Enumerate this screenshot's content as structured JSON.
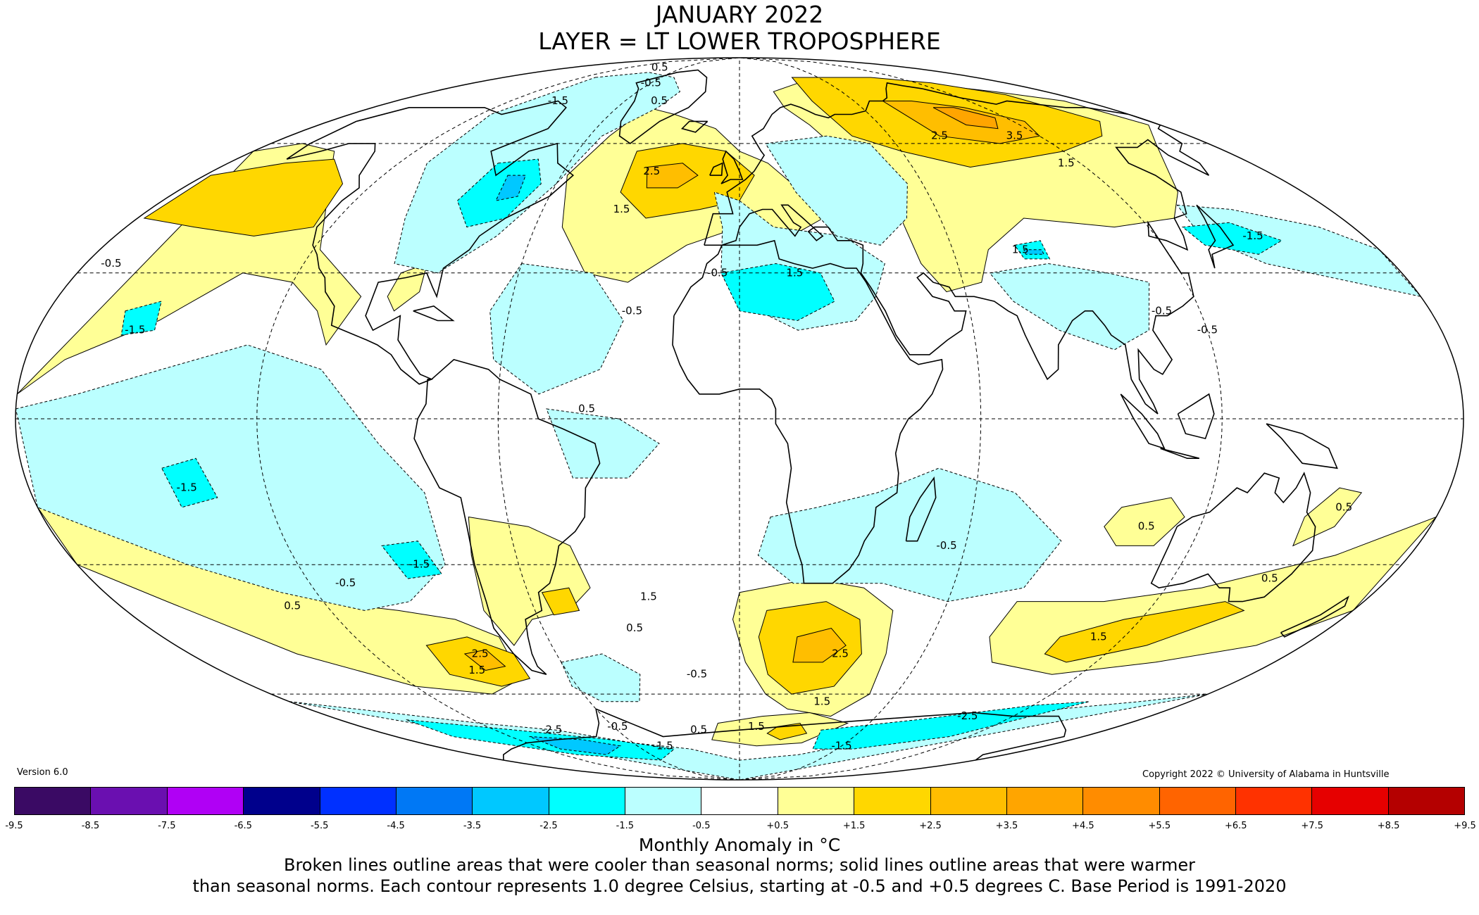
{
  "title": "JANUARY 2022",
  "subtitle": "LAYER = LT LOWER TROPOSPHERE",
  "version": "Version 6.0",
  "copyright": "Copyright 2022 © University of Alabama in Huntsville",
  "legend": {
    "units": "Monthly Anomaly in °C",
    "colors": [
      "#3a0a64",
      "#6a0fb0",
      "#b000f5",
      "#00008c",
      "#0030ff",
      "#0078f5",
      "#00c8ff",
      "#00ffff",
      "#bbffff",
      "#ffffff",
      "#ffff96",
      "#ffd700",
      "#ffbe00",
      "#ffa500",
      "#ff8c00",
      "#ff6400",
      "#ff3200",
      "#e60000",
      "#b40000"
    ],
    "ticks": [
      "-9.5",
      "-8.5",
      "-7.5",
      "-6.5",
      "-5.5",
      "-4.5",
      "-3.5",
      "-2.5",
      "-1.5",
      "-0.5",
      "+0.5",
      "+1.5",
      "+2.5",
      "+3.5",
      "+4.5",
      "+5.5",
      "+6.5",
      "+7.5",
      "+8.5",
      "+9.5"
    ]
  },
  "note_line1": "Broken lines outline areas that were cooler than seasonal norms; solid lines outline areas that were warmer",
  "note_line2": "than seasonal norms. Each contour represents 1.0 degree Celsius, starting at -0.5 and +0.5 degrees C. Base Period is 1991-2020",
  "map": {
    "projection": "Mollweide",
    "contour_labels": [
      {
        "text": "0.5",
        "lon": -85,
        "lat": 84
      },
      {
        "text": "-0.5",
        "lon": -60,
        "lat": 78
      },
      {
        "text": "0.5",
        "lon": -42,
        "lat": 72
      },
      {
        "text": "-1.5",
        "lon": -95,
        "lat": 72
      },
      {
        "text": "2.5",
        "lon": -30,
        "lat": 53
      },
      {
        "text": "1.5",
        "lon": -36,
        "lat": 44
      },
      {
        "text": "-0.5",
        "lon": -6,
        "lat": 30
      },
      {
        "text": "-0.5",
        "lon": -28,
        "lat": 22
      },
      {
        "text": "1.5",
        "lon": 15,
        "lat": 30
      },
      {
        "text": "2.5",
        "lon": 80,
        "lat": 62
      },
      {
        "text": "3.5",
        "lon": 110,
        "lat": 62
      },
      {
        "text": "1.5",
        "lon": 115,
        "lat": 55
      },
      {
        "text": "1.5",
        "lon": 79,
        "lat": 35
      },
      {
        "text": "-1.5",
        "lon": 148,
        "lat": 38
      },
      {
        "text": "-0.5",
        "lon": -173,
        "lat": 32
      },
      {
        "text": "-0.5",
        "lon": 110,
        "lat": 22
      },
      {
        "text": "-0.5",
        "lon": 120,
        "lat": 18
      },
      {
        "text": "-1.5",
        "lon": -155,
        "lat": 18
      },
      {
        "text": "0.5",
        "lon": -38,
        "lat": 2
      },
      {
        "text": "-1.5",
        "lon": -140,
        "lat": -14
      },
      {
        "text": "-1.5",
        "lon": -87,
        "lat": -30
      },
      {
        "text": "-0.5",
        "lon": -110,
        "lat": -34
      },
      {
        "text": "0.5",
        "lon": -130,
        "lat": -39
      },
      {
        "text": "1.5",
        "lon": -26,
        "lat": -37
      },
      {
        "text": "0.5",
        "lon": -32,
        "lat": -44
      },
      {
        "text": "2.5",
        "lon": -85,
        "lat": -50
      },
      {
        "text": "1.5",
        "lon": -91,
        "lat": -54
      },
      {
        "text": "-0.5",
        "lon": -15,
        "lat": -55
      },
      {
        "text": "2.5",
        "lon": 33,
        "lat": -50
      },
      {
        "text": "1.5",
        "lon": 33,
        "lat": -62
      },
      {
        "text": "-0.5",
        "lon": 55,
        "lat": -26
      },
      {
        "text": "0.5",
        "lon": 106,
        "lat": -22
      },
      {
        "text": "0.5",
        "lon": 155,
        "lat": -18
      },
      {
        "text": "0.5",
        "lon": 147,
        "lat": -33
      },
      {
        "text": "1.5",
        "lon": 112,
        "lat": -46
      },
      {
        "text": "-0.5",
        "lon": -58,
        "lat": -69
      },
      {
        "text": "-2.5",
        "lon": -92,
        "lat": -70
      },
      {
        "text": "-1.5",
        "lon": -45,
        "lat": -75
      },
      {
        "text": "0.5",
        "lon": -20,
        "lat": -70
      },
      {
        "text": "1.5",
        "lon": 8,
        "lat": -69
      },
      {
        "text": "-1.5",
        "lon": 60,
        "lat": -75
      },
      {
        "text": "-2.5",
        "lon": 100,
        "lat": -66
      }
    ]
  }
}
